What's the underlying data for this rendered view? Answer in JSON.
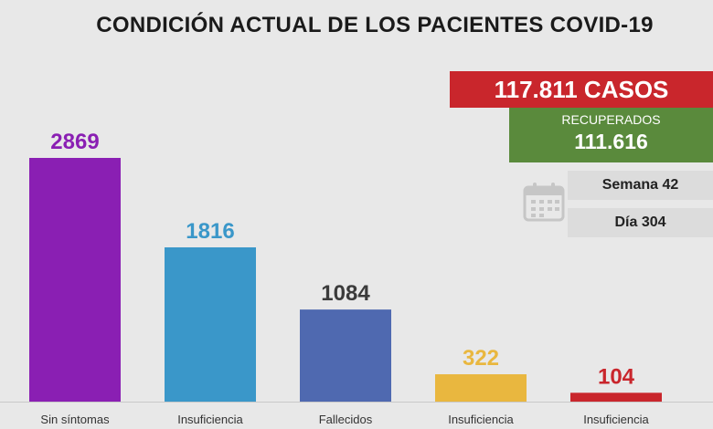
{
  "title": "CONDICIÓN ACTUAL DE LOS PACIENTES COVID-19",
  "summary": {
    "cases": "117.811 CASOS",
    "recovered_label": "RECUPERADOS",
    "recovered_value": "111.616",
    "week": "Semana 42",
    "day": "Día 304"
  },
  "colors": {
    "cases_bg": "#c9262c",
    "recovered_bg": "#5a8a3c"
  },
  "icons": {
    "calendar": "calendar-icon"
  },
  "chart_data": {
    "type": "bar",
    "categories": [
      "Sin síntomas",
      "Insuficiencia",
      "Fallecidos",
      "Insuficiencia",
      "Insuficiencia"
    ],
    "values": [
      2869,
      1816,
      1084,
      322,
      104
    ],
    "value_labels": [
      "2869",
      "1816",
      "1084",
      "322",
      "104"
    ],
    "colors": [
      "#8a1fb3",
      "#3a97c9",
      "#4f69b0",
      "#e9b73f",
      "#c9262c"
    ],
    "label_colors": [
      "#8a1fb3",
      "#3a97c9",
      "#3b3b3b",
      "#e9b73f",
      "#c9262c"
    ],
    "ylim": [
      0,
      2869
    ],
    "grid": false
  }
}
